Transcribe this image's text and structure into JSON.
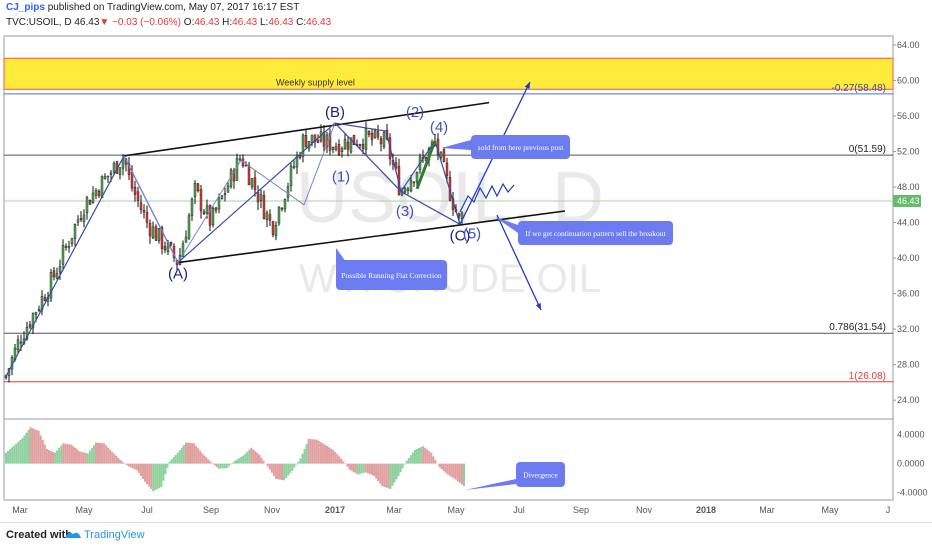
{
  "header": {
    "author": "CJ_pips",
    "published": "published on TradingView.com, May 07, 2017 16:17 EST",
    "symbol": "TVC:USOIL, D",
    "last": "46.43",
    "arrow": "▼",
    "change": "−0.03 (−0.06%)",
    "o_label": "O:",
    "o_val": "46.43",
    "h_label": "H:",
    "h_val": "46.43",
    "l_label": "L:",
    "l_val": "46.43",
    "c_label": "C:",
    "c_val": "46.43"
  },
  "watermark": {
    "big": "USOIL, D",
    "small": "WTI CRUDE OIL"
  },
  "footer": {
    "created": "Created with",
    "brand": "TradingView"
  },
  "colors": {
    "accent": "#2962ff",
    "supply_fill": "#ffeb3b",
    "supply_border": "#ff5252",
    "up": "#4caf50",
    "down": "#e53935",
    "wave": "#1a237e",
    "callout": "#6c7cf0",
    "fib_red": "#e53935"
  },
  "chart_data": {
    "type": "candlestick",
    "symbol": "TVC:USOIL",
    "interval": "D",
    "y_axis": {
      "min": 22,
      "max": 65,
      "ticks": [
        "64.00",
        "60.00",
        "56.00",
        "52.00",
        "48.00",
        "44.00",
        "40.00",
        "36.00",
        "32.00",
        "28.00",
        "24.00"
      ]
    },
    "x_axis": {
      "ticks": [
        "Mar",
        "May",
        "Jul",
        "Sep",
        "Nov",
        "2017",
        "Mar",
        "May",
        "Jul",
        "Sep",
        "Nov",
        "2018",
        "Mar",
        "May",
        "J"
      ]
    },
    "last_price_label": "46.43",
    "close_path": [
      {
        "t": "Feb 2016",
        "close": 26.5
      },
      {
        "t": "Mar 2016",
        "close": 31.0
      },
      {
        "t": "Apr 2016",
        "close": 37.5
      },
      {
        "t": "May 2016",
        "close": 46.0
      },
      {
        "t": "early Jun 2016",
        "close": 51.5
      },
      {
        "t": "Jun 2016",
        "close": 48.5
      },
      {
        "t": "Jul 2016",
        "close": 44.0
      },
      {
        "t": "early Aug 2016",
        "close": 39.5
      },
      {
        "t": "late Aug 2016",
        "close": 47.5
      },
      {
        "t": "Sep 2016",
        "close": 44.0
      },
      {
        "t": "Oct 2016",
        "close": 51.5
      },
      {
        "t": "Nov 2016",
        "close": 43.5
      },
      {
        "t": "Dec 2016",
        "close": 53.5
      },
      {
        "t": "Jan 2017",
        "close": 52.8
      },
      {
        "t": "Feb 2017",
        "close": 53.5
      },
      {
        "t": "early Mar 2017",
        "close": 53.0
      },
      {
        "t": "Mar 2017",
        "close": 47.5
      },
      {
        "t": "Apr 2017",
        "close": 53.0
      },
      {
        "t": "early May 2017",
        "close": 43.8
      },
      {
        "t": "May 2017",
        "close": 46.43
      }
    ],
    "supply_zone": {
      "label": "Weekly supply level",
      "from": 59.0,
      "to": 62.5
    },
    "fib_levels": [
      {
        "label": "-0.27(58.48)",
        "value": 58.48
      },
      {
        "label": "0(51.59)",
        "value": 51.59
      },
      {
        "label": "0.786(31.54)",
        "value": 31.54
      },
      {
        "label": "1(26.08)",
        "value": 26.08
      }
    ],
    "wave_labels": [
      {
        "text": "(A)",
        "t": "early Aug 2016",
        "price": 39.5
      },
      {
        "text": "(B)",
        "t": "Jan 2017",
        "price": 55.2
      },
      {
        "text": "(1)",
        "t": "Jan 2017",
        "price": 50.0
      },
      {
        "text": "(2)",
        "t": "Feb 2017",
        "price": 55.0
      },
      {
        "text": "(3)",
        "t": "Mar 2017",
        "price": 47.0
      },
      {
        "text": "(4)",
        "t": "Apr 2017",
        "price": 53.5
      },
      {
        "text": "(C)",
        "t": "early May 2017",
        "price": 43.8
      },
      {
        "text": "(5)",
        "t": "early May 2017",
        "price": 43.8
      }
    ],
    "channel": {
      "upper": [
        {
          "t": "early Jun 2016",
          "price": 51.5
        },
        {
          "t": "Jun 2017",
          "price": 57.5
        }
      ],
      "lower": [
        {
          "t": "early Aug 2016",
          "price": 39.5
        },
        {
          "t": "Jul 2017",
          "price": 45.3
        }
      ]
    },
    "annotations": [
      "sold from here previous post",
      "If we get continuation pattern sell the breakout",
      "Possible Running Flat Correction",
      "Divergence"
    ],
    "oscillator": {
      "type": "histogram",
      "ticks": [
        "4.0000",
        "0.0000",
        "-4.0000"
      ],
      "ylim": [
        -5,
        6
      ],
      "values": [
        1.5,
        2.5,
        3.5,
        5,
        4.5,
        2,
        1.5,
        2.8,
        2.6,
        1.7,
        1.4,
        2.9,
        2.8,
        1.6,
        0.5,
        -0.4,
        -0.9,
        -2.5,
        -3.8,
        -3.2,
        0.3,
        1.5,
        2.9,
        2.8,
        1.4,
        0.3,
        -0.7,
        -0.6,
        0.4,
        1.1,
        2.2,
        1.2,
        -0.4,
        -2.1,
        -2.3,
        -1,
        0.7,
        3.4,
        3.3,
        2.6,
        1.9,
        0.7,
        -0.8,
        -1.5,
        -1.2,
        -1.7,
        -3.1,
        -3.5,
        -1.7,
        0.4,
        1.9,
        2.4,
        1.5,
        -0.5,
        -1.5,
        -2.2,
        -3.1
      ]
    }
  }
}
